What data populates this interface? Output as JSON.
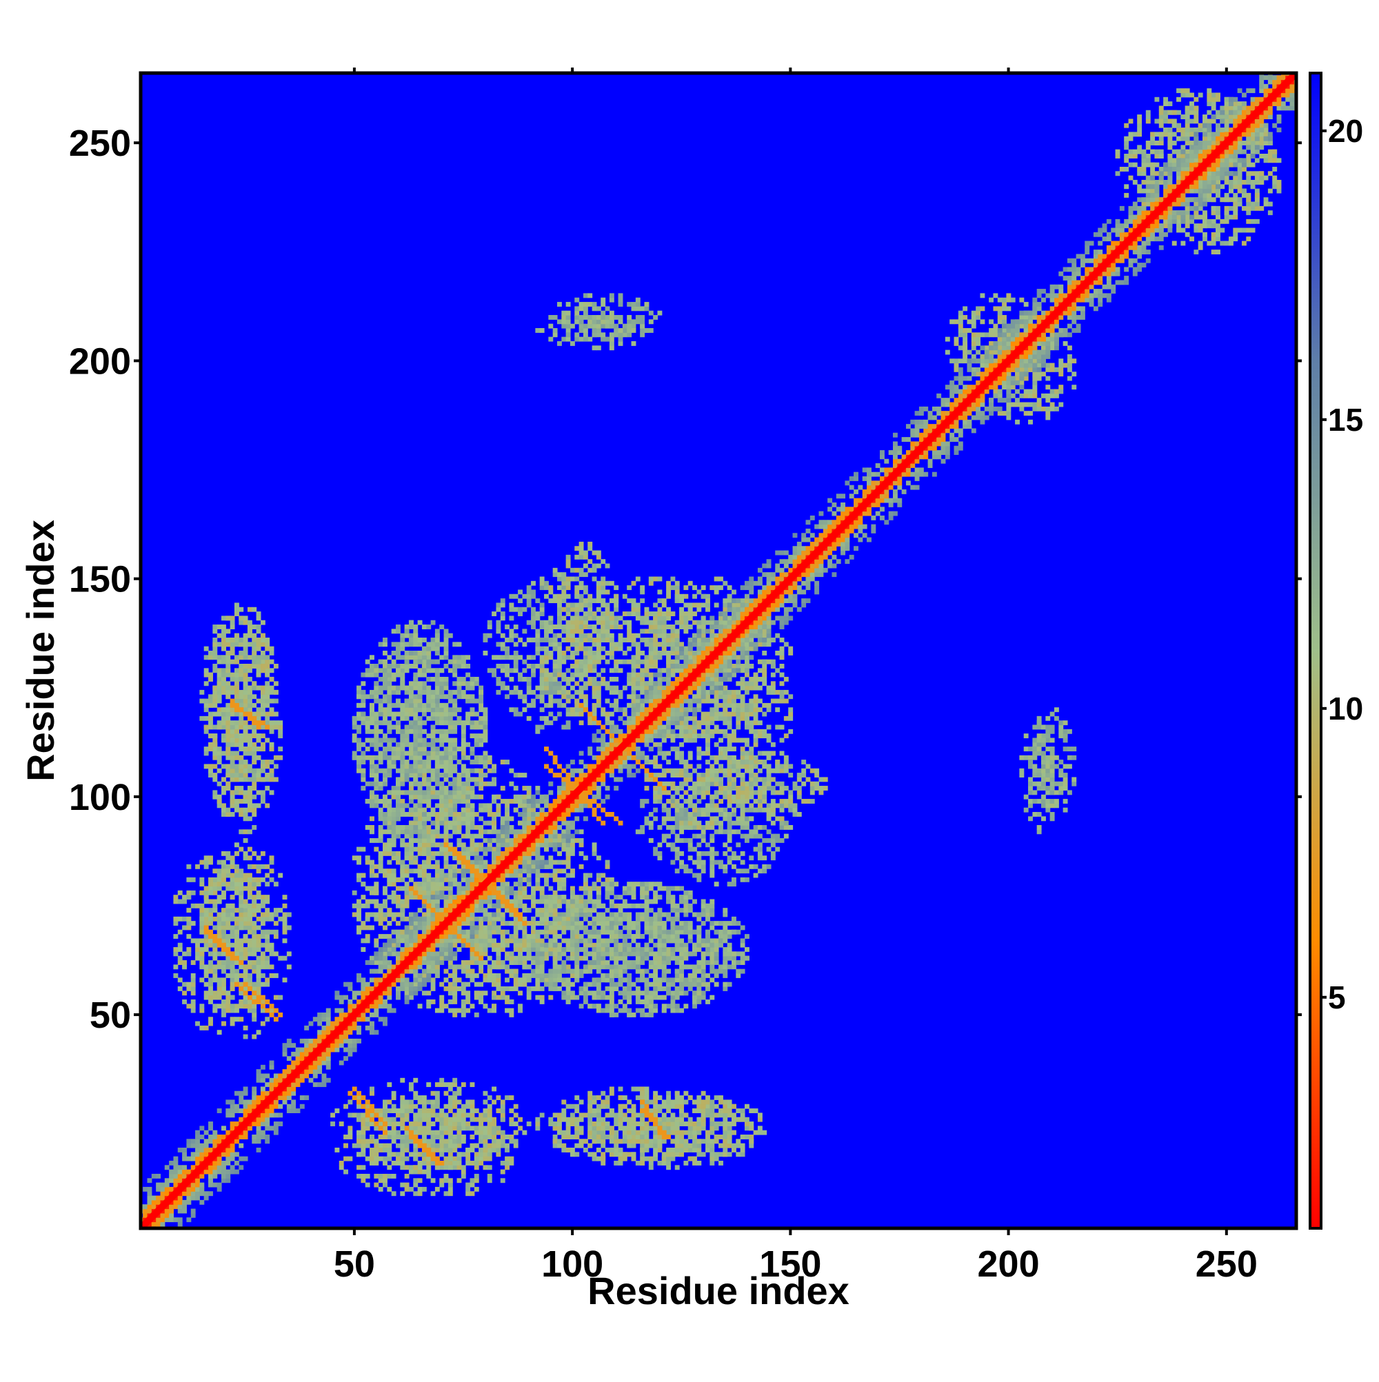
{
  "chart_data": {
    "type": "heatmap",
    "title": "",
    "xlabel": "Residue index",
    "ylabel": "Residue index",
    "n_residues": 266,
    "xlim": [
      1,
      266
    ],
    "ylim": [
      1,
      266
    ],
    "xticks": [
      50,
      100,
      150,
      200,
      250
    ],
    "yticks": [
      50,
      100,
      150,
      200,
      250
    ],
    "colorbar": {
      "ticks": [
        5,
        10,
        15,
        20
      ],
      "range": [
        1,
        21
      ],
      "colors": [
        "#ff0000",
        "#ff8c00",
        "#9fbf8a",
        "#5f7fa8",
        "#0000ff"
      ]
    },
    "background_color": "#0000ff",
    "diagonal_color": "#ff0000",
    "contact_colors": {
      "close": "#ff8c00",
      "medium": "#9fbf8a",
      "far": "#0000ff"
    },
    "contact_segments": [
      {
        "x": [
          22,
          28
        ],
        "y": [
          122,
          116
        ],
        "value": 7
      },
      {
        "x": [
          16,
          24
        ],
        "y": [
          70,
          62
        ],
        "value": 7
      },
      {
        "x": [
          23,
          32
        ],
        "y": [
          57,
          49
        ],
        "value": 7
      },
      {
        "x": [
          50,
          57
        ],
        "y": [
          33,
          25
        ],
        "value": 7
      },
      {
        "x": [
          63,
          69
        ],
        "y": [
          22,
          16
        ],
        "value": 7
      },
      {
        "x": [
          116,
          121
        ],
        "y": [
          30,
          22
        ],
        "value": 7
      },
      {
        "x": [
          63,
          79
        ],
        "y": [
          79,
          63
        ],
        "value": 7
      },
      {
        "x": [
          71,
          88
        ],
        "y": [
          89,
          73
        ],
        "value": 7
      },
      {
        "x": [
          94,
          107
        ],
        "y": [
          111,
          94
        ],
        "value": 7
      },
      {
        "x": [
          102,
          120
        ],
        "y": [
          121,
          103
        ],
        "value": 7
      }
    ],
    "contact_regions": [
      {
        "x": [
          16,
          33
        ],
        "y": [
          92,
          143
        ],
        "value": 11
      },
      {
        "x": [
          8,
          30
        ],
        "y": [
          46,
          88
        ],
        "value": 11
      },
      {
        "x": [
          45,
          90
        ],
        "y": [
          15,
          35
        ],
        "value": 11
      },
      {
        "x": [
          95,
          145
        ],
        "y": [
          15,
          32
        ],
        "value": 11
      },
      {
        "x": [
          50,
          80
        ],
        "y": [
          90,
          140
        ],
        "value": 12
      },
      {
        "x": [
          80,
          108
        ],
        "y": [
          115,
          150
        ],
        "value": 12
      },
      {
        "x": [
          113,
          150
        ],
        "y": [
          92,
          150
        ],
        "value": 11
      },
      {
        "x": [
          128,
          158
        ],
        "y": [
          95,
          110
        ],
        "value": 11
      },
      {
        "x": [
          50,
          110
        ],
        "y": [
          50,
          100
        ],
        "value": 11
      },
      {
        "x": [
          90,
          140
        ],
        "y": [
          50,
          80
        ],
        "value": 12
      },
      {
        "x": [
          92,
          118
        ],
        "y": [
          203,
          210
        ],
        "value": 12
      },
      {
        "x": [
          205,
          215
        ],
        "y": [
          95,
          120
        ],
        "value": 12
      },
      {
        "x": [
          185,
          210
        ],
        "y": [
          195,
          215
        ],
        "value": 11
      },
      {
        "x": [
          230,
          262
        ],
        "y": [
          225,
          262
        ],
        "value": 11
      }
    ]
  }
}
